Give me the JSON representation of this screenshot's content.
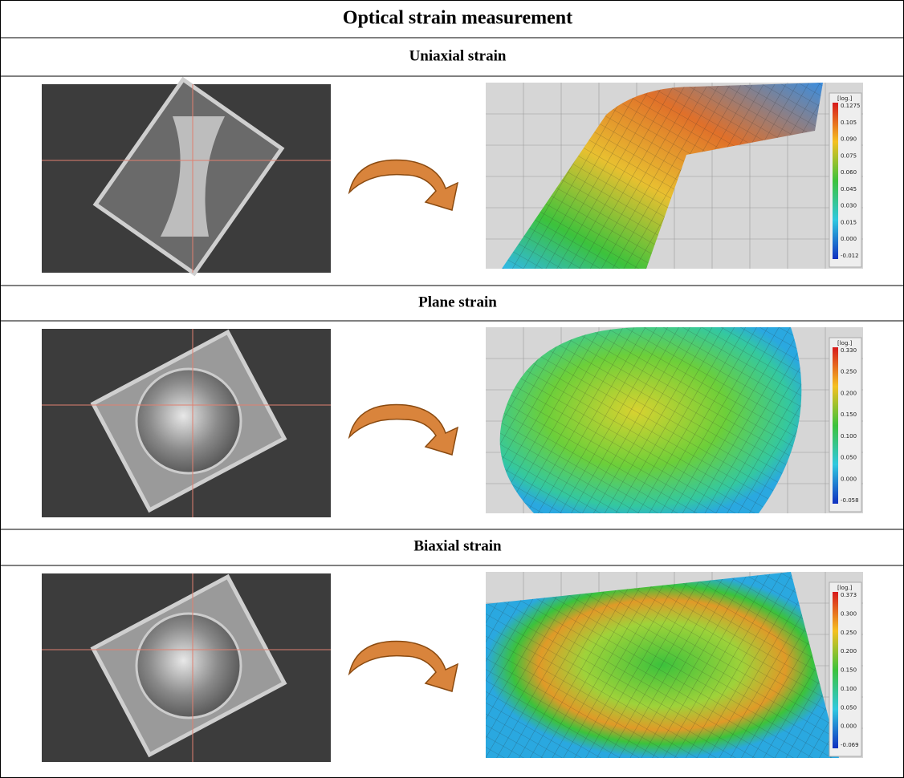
{
  "title": "Optical strain measurement",
  "sections": [
    {
      "heading": "Uniaxial strain",
      "colorbar": {
        "unit": "[log.]",
        "labels": [
          "0.1275",
          "0.105",
          "0.090",
          "0.075",
          "0.060",
          "0.045",
          "0.030",
          "0.015",
          "0.000",
          "-0.012"
        ]
      }
    },
    {
      "heading": "Plane strain",
      "colorbar": {
        "unit": "[log.]",
        "labels": [
          "0.330",
          "0.250",
          "0.200",
          "0.150",
          "0.100",
          "0.050",
          "0.000",
          "-0.058"
        ]
      }
    },
    {
      "heading": "Biaxial strain",
      "colorbar": {
        "unit": "[log.]",
        "labels": [
          "0.373",
          "0.300",
          "0.250",
          "0.200",
          "0.150",
          "0.100",
          "0.050",
          "0.000",
          "-0.069"
        ]
      }
    }
  ]
}
